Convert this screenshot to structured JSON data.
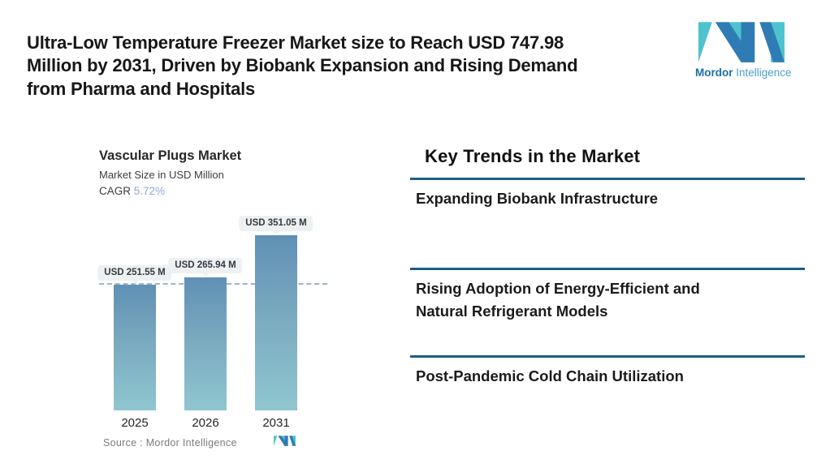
{
  "header": {
    "title_lines": [
      "Ultra-Low Temperature Freezer Market size to Reach USD 747.98",
      "Million by 2031, Driven by Biobank Expansion and Rising Demand",
      "from Pharma and Hospitals"
    ],
    "brand": {
      "name_bold": "Mordor",
      "name_light": "Intelligence"
    }
  },
  "chart": {
    "title": "Vascular Plugs Market",
    "subtitle": "Market Size in USD Million",
    "cagr_label": "CAGR",
    "cagr_value": "5.72%",
    "source_label": "Source :  Mordor Intelligence"
  },
  "chart_data": {
    "type": "bar",
    "title": "Vascular Plugs Market",
    "subtitle": "Market Size in USD Million",
    "cagr": "5.72%",
    "ylabel": "Market Size (USD Million)",
    "categories": [
      "2025",
      "2026",
      "2031"
    ],
    "values": [
      251.55,
      265.94,
      351.05
    ],
    "ylim": [
      0,
      400
    ],
    "grid": false,
    "legend": "none",
    "reference_line_value": 251.55,
    "bars": [
      {
        "year": "2025",
        "value": 251.55,
        "label": "USD 251.55 M"
      },
      {
        "year": "2026",
        "value": 265.94,
        "label": "USD 265.94 M"
      },
      {
        "year": "2031",
        "value": 351.05,
        "label": "USD 351.05 M"
      }
    ],
    "colors": {
      "bar_gradient_top": "#6090b4",
      "bar_gradient_bottom": "#8fc6cf",
      "reference_line": "#9db5ca",
      "label_bubble_bg": "#edf1f2"
    }
  },
  "trends": {
    "heading": "Key Trends in the Market",
    "items": [
      {
        "lines": [
          "Expanding Biobank Infrastructure"
        ]
      },
      {
        "lines": [
          "Rising Adoption of Energy-Efficient and",
          "Natural Refrigerant Models"
        ]
      },
      {
        "lines": [
          "Post-Pandemic Cold Chain Utilization"
        ]
      }
    ]
  },
  "colors": {
    "divider": "#1b5f82",
    "cagr_accent": "#87abd8",
    "logo_blue": "#2f7cb4",
    "logo_teal": "#4ec3ce",
    "brand_bold_text": "#1d6fa5",
    "brand_light_text": "#4aa1c9"
  }
}
